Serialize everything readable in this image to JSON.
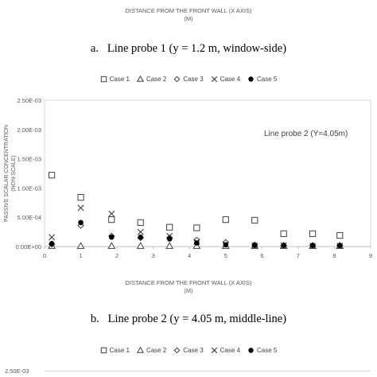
{
  "top_axis_title": {
    "line1": "DISTANCE FROM THE FRONT WALL (X AXIS)",
    "line2": "(M)"
  },
  "caption_a": {
    "letter": "a.",
    "text": "Line probe 1 (y = 1.2 m, window-side)"
  },
  "legend_a": [
    {
      "label": "Case 1",
      "marker": "square"
    },
    {
      "label": "Case 2",
      "marker": "triangle"
    },
    {
      "label": "Case 3",
      "marker": "diamond"
    },
    {
      "label": "Case 4",
      "marker": "cross"
    },
    {
      "label": "Case 5",
      "marker": "dot"
    }
  ],
  "legend_b": [
    {
      "label": "Case 1",
      "marker": "square"
    },
    {
      "label": "Case 2",
      "marker": "triangle"
    },
    {
      "label": "Case 3",
      "marker": "diamond"
    },
    {
      "label": "Case 4",
      "marker": "cross"
    },
    {
      "label": "Case 5",
      "marker": "dot"
    }
  ],
  "caption_b": {
    "letter": "b.",
    "text": "Line probe 2 (y = 4.05 m, middle-line)"
  },
  "bottom_peek_tick": "2.50E-03",
  "colors": {
    "text": "#595959",
    "axis": "#bfbfbf",
    "marker": "#404040",
    "dot": "#000000"
  },
  "chart_data": {
    "type": "scatter",
    "annotation": "Line probe 2 (Y=4.05m)",
    "ylabel_line1": "PASSIVE SCALAR CONCENTRATION",
    "ylabel_line2": "(NON-SCALE)",
    "xlabel_line1": "DISTANCE FROM THE FRONT WALL (X AXIS)",
    "xlabel_line2": "(M)",
    "xlim": [
      0,
      9
    ],
    "ylim": [
      0,
      0.0025
    ],
    "x_ticks": [
      "0",
      "1",
      "2",
      "3",
      "4",
      "5",
      "6",
      "7",
      "8",
      "9"
    ],
    "y_ticks": [
      "0.00E+00",
      "5.00E-04",
      "1.00E-03",
      "1.50E-03",
      "2.00E-03",
      "2.50E-03"
    ],
    "grid": false,
    "legend_position": "top",
    "series": [
      {
        "name": "Case 1",
        "marker": "square",
        "x": [
          0.2,
          1.0,
          1.85,
          2.65,
          3.45,
          4.2,
          5.0,
          5.8,
          6.6,
          7.4,
          8.15
        ],
        "y": [
          0.00122,
          0.00084,
          0.00046,
          0.00041,
          0.00033,
          0.00032,
          0.00046,
          0.00045,
          0.00022,
          0.00022,
          0.00019
        ]
      },
      {
        "name": "Case 2",
        "marker": "triangle",
        "x": [
          0.2,
          1.0,
          1.85,
          2.65,
          3.45,
          4.2,
          5.0,
          5.8,
          6.6,
          7.4,
          8.15
        ],
        "y": [
          1e-05,
          1e-05,
          1e-05,
          1e-05,
          1e-05,
          1e-05,
          1e-05,
          1e-05,
          1e-05,
          1e-05,
          1e-05
        ]
      },
      {
        "name": "Case 3",
        "marker": "diamond",
        "x": [
          0.2,
          1.0,
          1.85,
          2.65,
          3.45,
          4.2,
          5.0,
          5.8,
          6.6,
          7.4,
          8.15
        ],
        "y": [
          4e-05,
          0.00036,
          0.00018,
          0.00015,
          0.00015,
          0.00011,
          7e-05,
          3e-05,
          2e-05,
          2e-05,
          2e-05
        ]
      },
      {
        "name": "Case 4",
        "marker": "cross",
        "x": [
          0.2,
          1.0,
          1.85,
          2.65,
          3.45,
          4.2,
          5.0,
          5.8,
          6.6,
          7.4,
          8.15
        ],
        "y": [
          0.00016,
          0.00066,
          0.00056,
          0.00025,
          0.00018,
          8e-05,
          4e-05,
          2e-05,
          2e-05,
          1e-05,
          1e-05
        ]
      },
      {
        "name": "Case 5",
        "marker": "dot",
        "x": [
          0.2,
          1.0,
          1.85,
          2.65,
          3.45,
          4.2,
          5.0,
          5.8,
          6.6,
          7.4,
          8.15
        ],
        "y": [
          5e-05,
          0.00041,
          0.00016,
          0.00016,
          0.00013,
          6e-05,
          3e-05,
          2e-05,
          2e-05,
          2e-05,
          2e-05
        ]
      }
    ]
  }
}
